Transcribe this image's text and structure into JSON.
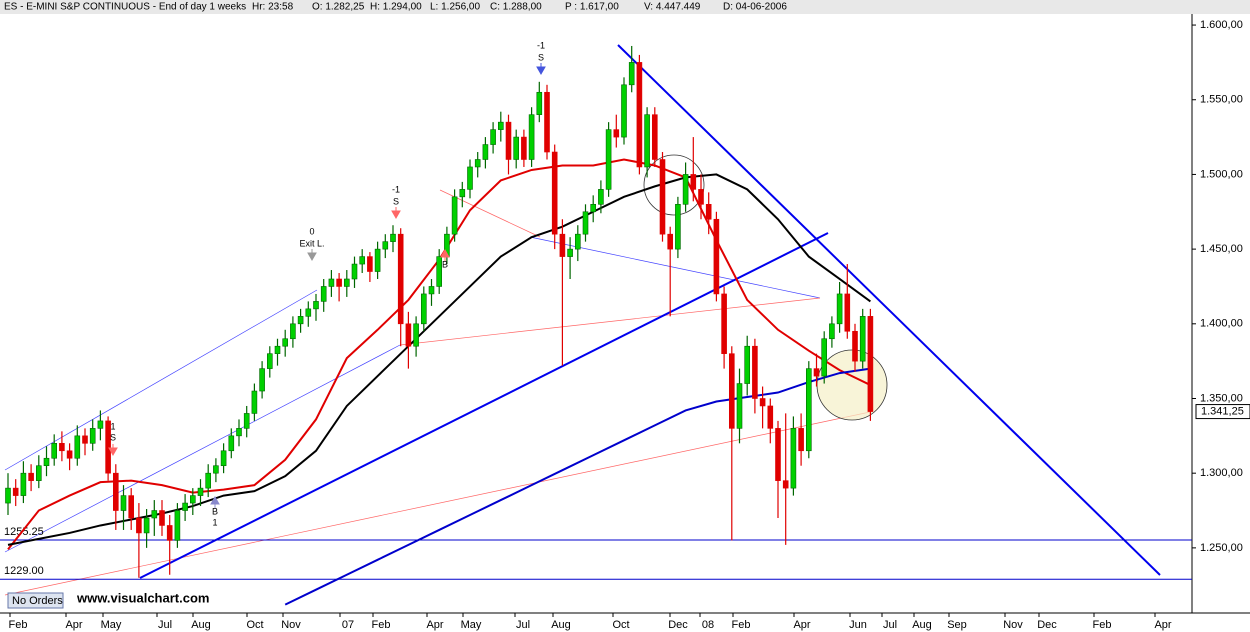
{
  "chart_data": {
    "type": "candlestick",
    "header": [
      "ES - E-MINI S&P CONTINUOUS - End of day 1 weeks",
      "Hr: 23:58",
      "O: 1.282,25",
      "H: 1.294,00",
      "L: 1.256,00",
      "C: 1.288,00",
      "P : 1.617,00",
      "V: 4.447.449",
      "D: 04-06-2006"
    ],
    "x_labels": [
      "Feb",
      "Apr",
      "May",
      "Jul",
      "Aug",
      "Oct",
      "Nov",
      "07",
      "Feb",
      "Apr",
      "May",
      "Jul",
      "Aug",
      "Oct",
      "Dec",
      "08",
      "Feb",
      "Apr",
      "Jun",
      "Jul",
      "Aug",
      "Sep",
      "Nov",
      "Dec",
      "Feb",
      "Apr"
    ],
    "ylim": [
      1206.4,
      1607.4
    ],
    "yticks": [
      {
        "value": 1250,
        "label": "1.250,00"
      },
      {
        "value": 1300,
        "label": "1.300,00"
      },
      {
        "value": 1350,
        "label": "1.350,00"
      },
      {
        "value": 1400,
        "label": "1.400,00"
      },
      {
        "value": 1450,
        "label": "1.450,00"
      },
      {
        "value": 1500,
        "label": "1.500,00"
      },
      {
        "value": 1550,
        "label": "1.550,00"
      },
      {
        "value": 1600,
        "label": "1.600,00"
      }
    ],
    "up_color": "#00d000",
    "down_color": "#e00000",
    "candles": [
      [
        1280,
        1300,
        1272,
        1290
      ],
      [
        1290,
        1296,
        1278,
        1285
      ],
      [
        1285,
        1308,
        1280,
        1300
      ],
      [
        1300,
        1306,
        1288,
        1295
      ],
      [
        1295,
        1312,
        1290,
        1305
      ],
      [
        1305,
        1318,
        1298,
        1310
      ],
      [
        1310,
        1326,
        1305,
        1320
      ],
      [
        1320,
        1328,
        1308,
        1315
      ],
      [
        1315,
        1320,
        1302,
        1310
      ],
      [
        1310,
        1332,
        1305,
        1325
      ],
      [
        1325,
        1330,
        1312,
        1320
      ],
      [
        1320,
        1336,
        1315,
        1330
      ],
      [
        1330,
        1342,
        1322,
        1335
      ],
      [
        1335,
        1338,
        1295,
        1300
      ],
      [
        1300,
        1306,
        1262,
        1275
      ],
      [
        1275,
        1292,
        1262,
        1285
      ],
      [
        1285,
        1290,
        1262,
        1270
      ],
      [
        1270,
        1280,
        1230,
        1260
      ],
      [
        1260,
        1276,
        1250,
        1270
      ],
      [
        1270,
        1282,
        1258,
        1275
      ],
      [
        1275,
        1282,
        1258,
        1265
      ],
      [
        1265,
        1272,
        1232,
        1255
      ],
      [
        1255,
        1280,
        1250,
        1275
      ],
      [
        1275,
        1286,
        1268,
        1280
      ],
      [
        1280,
        1290,
        1272,
        1285
      ],
      [
        1285,
        1296,
        1278,
        1290
      ],
      [
        1290,
        1306,
        1284,
        1300
      ],
      [
        1300,
        1310,
        1294,
        1305
      ],
      [
        1305,
        1320,
        1300,
        1315
      ],
      [
        1315,
        1330,
        1310,
        1325
      ],
      [
        1325,
        1336,
        1318,
        1330
      ],
      [
        1330,
        1345,
        1324,
        1340
      ],
      [
        1340,
        1360,
        1335,
        1355
      ],
      [
        1355,
        1375,
        1350,
        1370
      ],
      [
        1370,
        1385,
        1364,
        1380
      ],
      [
        1380,
        1390,
        1372,
        1385
      ],
      [
        1385,
        1396,
        1378,
        1390
      ],
      [
        1390,
        1405,
        1384,
        1400
      ],
      [
        1400,
        1410,
        1394,
        1405
      ],
      [
        1405,
        1415,
        1398,
        1410
      ],
      [
        1410,
        1420,
        1402,
        1415
      ],
      [
        1415,
        1430,
        1408,
        1425
      ],
      [
        1425,
        1436,
        1418,
        1430
      ],
      [
        1430,
        1434,
        1415,
        1425
      ],
      [
        1425,
        1436,
        1418,
        1430
      ],
      [
        1430,
        1445,
        1424,
        1440
      ],
      [
        1440,
        1450,
        1434,
        1445
      ],
      [
        1445,
        1448,
        1428,
        1435
      ],
      [
        1435,
        1455,
        1430,
        1450
      ],
      [
        1450,
        1460,
        1444,
        1455
      ],
      [
        1455,
        1466,
        1448,
        1460
      ],
      [
        1460,
        1464,
        1385,
        1400
      ],
      [
        1400,
        1408,
        1370,
        1385
      ],
      [
        1385,
        1405,
        1378,
        1400
      ],
      [
        1400,
        1425,
        1395,
        1420
      ],
      [
        1420,
        1430,
        1412,
        1425
      ],
      [
        1425,
        1450,
        1420,
        1445
      ],
      [
        1445,
        1465,
        1440,
        1460
      ],
      [
        1460,
        1490,
        1455,
        1485
      ],
      [
        1485,
        1495,
        1478,
        1490
      ],
      [
        1490,
        1510,
        1484,
        1505
      ],
      [
        1505,
        1515,
        1498,
        1510
      ],
      [
        1510,
        1525,
        1504,
        1520
      ],
      [
        1520,
        1535,
        1514,
        1530
      ],
      [
        1530,
        1542,
        1522,
        1535
      ],
      [
        1535,
        1540,
        1500,
        1510
      ],
      [
        1510,
        1530,
        1504,
        1525
      ],
      [
        1525,
        1530,
        1505,
        1510
      ],
      [
        1510,
        1545,
        1505,
        1540
      ],
      [
        1540,
        1562,
        1535,
        1555
      ],
      [
        1555,
        1560,
        1510,
        1515
      ],
      [
        1515,
        1520,
        1450,
        1460
      ],
      [
        1460,
        1470,
        1372,
        1445
      ],
      [
        1445,
        1458,
        1430,
        1450
      ],
      [
        1450,
        1466,
        1442,
        1460
      ],
      [
        1460,
        1480,
        1455,
        1475
      ],
      [
        1475,
        1486,
        1468,
        1480
      ],
      [
        1480,
        1496,
        1474,
        1490
      ],
      [
        1490,
        1535,
        1485,
        1530
      ],
      [
        1530,
        1540,
        1518,
        1525
      ],
      [
        1525,
        1565,
        1520,
        1560
      ],
      [
        1560,
        1586,
        1555,
        1575
      ],
      [
        1575,
        1580,
        1500,
        1505
      ],
      [
        1505,
        1545,
        1498,
        1540
      ],
      [
        1540,
        1545,
        1505,
        1510
      ],
      [
        1510,
        1515,
        1455,
        1460
      ],
      [
        1460,
        1465,
        1405,
        1450
      ],
      [
        1450,
        1485,
        1444,
        1480
      ],
      [
        1480,
        1508,
        1475,
        1500
      ],
      [
        1500,
        1525,
        1482,
        1490
      ],
      [
        1490,
        1500,
        1470,
        1480
      ],
      [
        1480,
        1488,
        1460,
        1470
      ],
      [
        1470,
        1475,
        1415,
        1420
      ],
      [
        1420,
        1425,
        1370,
        1380
      ],
      [
        1380,
        1385,
        1255,
        1330
      ],
      [
        1330,
        1370,
        1320,
        1360
      ],
      [
        1360,
        1392,
        1352,
        1385
      ],
      [
        1385,
        1390,
        1340,
        1350
      ],
      [
        1350,
        1358,
        1330,
        1345
      ],
      [
        1345,
        1350,
        1320,
        1330
      ],
      [
        1330,
        1335,
        1270,
        1295
      ],
      [
        1295,
        1340,
        1252,
        1290
      ],
      [
        1290,
        1338,
        1285,
        1330
      ],
      [
        1330,
        1340,
        1305,
        1315
      ],
      [
        1315,
        1375,
        1310,
        1370
      ],
      [
        1370,
        1380,
        1358,
        1365
      ],
      [
        1365,
        1395,
        1360,
        1390
      ],
      [
        1390,
        1405,
        1384,
        1400
      ],
      [
        1400,
        1428,
        1394,
        1420
      ],
      [
        1420,
        1440,
        1390,
        1395
      ],
      [
        1395,
        1400,
        1368,
        1375
      ],
      [
        1375,
        1410,
        1370,
        1405
      ],
      [
        1405,
        1410,
        1335,
        1341.25
      ]
    ],
    "last_price_label": "1.341,25",
    "ma": [
      {
        "color": "#e00000",
        "values": [
          1249,
          1275,
          1285,
          1294,
          1295,
          1292,
          1287,
          1289,
          1292,
          1309,
          1336,
          1377,
          1396,
          1416,
          1443,
          1476,
          1496,
          1503,
          1506,
          1506,
          1510,
          1506,
          1498,
          1456,
          1416,
          1396,
          1382,
          1369,
          1359
        ]
      },
      {
        "color": "#000000",
        "values": [
          1252,
          1256,
          1260,
          1265,
          1269,
          1273,
          1278,
          1285,
          1288,
          1298,
          1315,
          1345,
          1365,
          1385,
          1405,
          1425,
          1445,
          1458,
          1465,
          1475,
          1485,
          1492,
          1498,
          1500,
          1490,
          1470,
          1445,
          1430,
          1415
        ]
      },
      {
        "color": "#0000cc",
        "values": [
          null,
          null,
          null,
          null,
          null,
          null,
          null,
          null,
          null,
          1212,
          1222,
          1232,
          1242,
          1252,
          1262,
          1272,
          1282,
          1292,
          1302,
          1312,
          1322,
          1332,
          1342,
          1348,
          1351,
          1354,
          1361,
          1367,
          1370
        ]
      }
    ],
    "levels": [
      {
        "value": 1255.25,
        "label": "1255.25"
      },
      {
        "value": 1229,
        "label": "1229.00"
      }
    ],
    "annotations": [
      "1",
      "S",
      "0",
      "Exit L.",
      "-1",
      "S",
      "B",
      "1",
      "-1",
      "S",
      "B"
    ],
    "button": "No Orders",
    "watermark": "www.visualchart.com"
  }
}
